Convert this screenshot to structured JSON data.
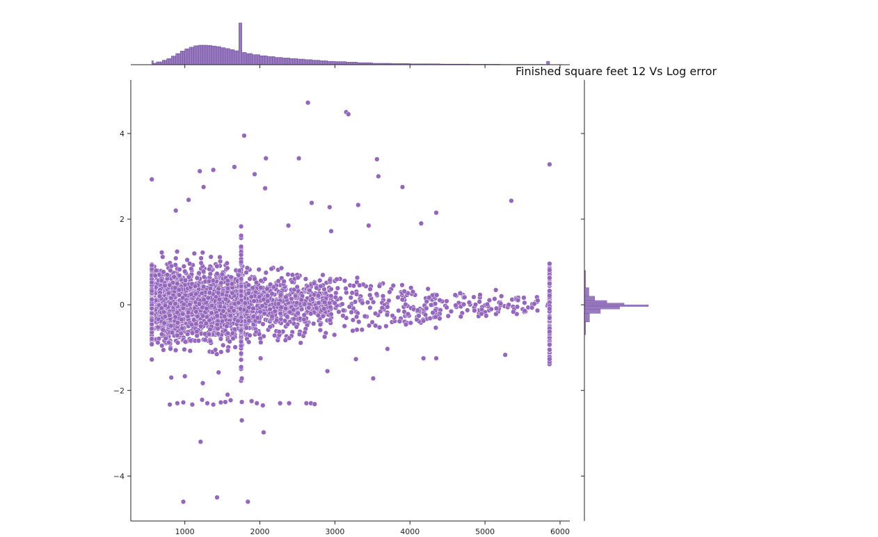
{
  "chart_data": {
    "type": "scatter",
    "title": "Finished square feet 12 Vs Log error",
    "xlabel": "",
    "ylabel": "",
    "xlim": [
      280,
      6130
    ],
    "ylim": [
      -5.05,
      5.25
    ],
    "x_ticks": [
      1000,
      2000,
      3000,
      4000,
      5000,
      6000
    ],
    "x_tick_labels": [
      "1000",
      "2000",
      "3000",
      "4000",
      "5000",
      "6000"
    ],
    "y_ticks": [
      4,
      2,
      0,
      -2,
      -4
    ],
    "y_tick_labels": [
      "4",
      "2",
      "0",
      "−2",
      "−4"
    ],
    "grid": false,
    "marginals": "histograms",
    "colors": {
      "points": "#9467bd",
      "edge": "#ffffff",
      "hist_fill": "#9a7bc2",
      "hist_edge": "#6e4f9c"
    },
    "outliers": [
      [
        2640,
        4.72
      ],
      [
        3150,
        4.5
      ],
      [
        3180,
        4.45
      ],
      [
        1790,
        3.95
      ],
      [
        2080,
        3.42
      ],
      [
        2520,
        3.42
      ],
      [
        3560,
        3.4
      ],
      [
        3580,
        3.0
      ],
      [
        560,
        2.93
      ],
      [
        1660,
        3.22
      ],
      [
        1380,
        3.15
      ],
      [
        1200,
        3.12
      ],
      [
        1930,
        3.05
      ],
      [
        5860,
        3.28
      ],
      [
        3900,
        2.75
      ],
      [
        1250,
        2.75
      ],
      [
        2070,
        2.72
      ],
      [
        5350,
        2.43
      ],
      [
        4350,
        2.15
      ],
      [
        2690,
        2.38
      ],
      [
        3310,
        2.33
      ],
      [
        2930,
        2.28
      ],
      [
        1050,
        2.45
      ],
      [
        880,
        2.2
      ],
      [
        4150,
        1.9
      ],
      [
        2380,
        1.85
      ],
      [
        2950,
        1.72
      ],
      [
        3450,
        1.85
      ],
      [
        560,
        -1.28
      ],
      [
        820,
        -1.7
      ],
      [
        1000,
        -1.67
      ],
      [
        1240,
        -1.83
      ],
      [
        1450,
        -1.58
      ],
      [
        1760,
        -1.72
      ],
      [
        2010,
        -1.25
      ],
      [
        3280,
        -1.27
      ],
      [
        3700,
        -1.03
      ],
      [
        4180,
        -1.25
      ],
      [
        4350,
        -1.25
      ],
      [
        5270,
        -1.17
      ],
      [
        2900,
        -1.55
      ],
      [
        3510,
        -1.72
      ],
      [
        1210,
        -3.2
      ],
      [
        1760,
        -2.7
      ],
      [
        2050,
        -2.98
      ],
      [
        980,
        -4.6
      ],
      [
        1430,
        -4.5
      ],
      [
        1840,
        -4.6
      ],
      [
        800,
        -2.33
      ],
      [
        900,
        -2.3
      ],
      [
        980,
        -2.28
      ],
      [
        1100,
        -2.33
      ],
      [
        1230,
        -2.22
      ],
      [
        1300,
        -2.3
      ],
      [
        1380,
        -2.33
      ],
      [
        1480,
        -2.28
      ],
      [
        1540,
        -2.27
      ],
      [
        1610,
        -2.23
      ],
      [
        1760,
        -2.27
      ],
      [
        1890,
        -2.25
      ],
      [
        1960,
        -2.3
      ],
      [
        2040,
        -2.35
      ],
      [
        2270,
        -2.3
      ],
      [
        2390,
        -2.3
      ],
      [
        2620,
        -2.3
      ],
      [
        2680,
        -2.3
      ],
      [
        2730,
        -2.32
      ],
      [
        1570,
        -2.1
      ]
    ],
    "x_marginal_bins": [
      {
        "x0": 560,
        "x1": 580,
        "v": 0.14
      },
      {
        "x0": 580,
        "x1": 620,
        "v": 0.05
      },
      {
        "x0": 620,
        "x1": 700,
        "v": 0.1
      },
      {
        "x0": 700,
        "x1": 760,
        "v": 0.16
      },
      {
        "x0": 760,
        "x1": 820,
        "v": 0.22
      },
      {
        "x0": 820,
        "x1": 880,
        "v": 0.31
      },
      {
        "x0": 880,
        "x1": 940,
        "v": 0.4
      },
      {
        "x0": 940,
        "x1": 1000,
        "v": 0.49
      },
      {
        "x0": 1000,
        "x1": 1060,
        "v": 0.57
      },
      {
        "x0": 1060,
        "x1": 1120,
        "v": 0.63
      },
      {
        "x0": 1120,
        "x1": 1180,
        "v": 0.68
      },
      {
        "x0": 1180,
        "x1": 1240,
        "v": 0.7
      },
      {
        "x0": 1240,
        "x1": 1300,
        "v": 0.7
      },
      {
        "x0": 1300,
        "x1": 1360,
        "v": 0.69
      },
      {
        "x0": 1360,
        "x1": 1420,
        "v": 0.67
      },
      {
        "x0": 1420,
        "x1": 1480,
        "v": 0.65
      },
      {
        "x0": 1480,
        "x1": 1540,
        "v": 0.61
      },
      {
        "x0": 1540,
        "x1": 1600,
        "v": 0.58
      },
      {
        "x0": 1600,
        "x1": 1660,
        "v": 0.54
      },
      {
        "x0": 1660,
        "x1": 1720,
        "v": 0.5
      },
      {
        "x0": 1720,
        "x1": 1760,
        "v": 1.5
      },
      {
        "x0": 1760,
        "x1": 1820,
        "v": 0.44
      },
      {
        "x0": 1820,
        "x1": 1900,
        "v": 0.4
      },
      {
        "x0": 1900,
        "x1": 2000,
        "v": 0.36
      },
      {
        "x0": 2000,
        "x1": 2100,
        "v": 0.32
      },
      {
        "x0": 2100,
        "x1": 2200,
        "v": 0.29
      },
      {
        "x0": 2200,
        "x1": 2300,
        "v": 0.26
      },
      {
        "x0": 2300,
        "x1": 2400,
        "v": 0.24
      },
      {
        "x0": 2400,
        "x1": 2500,
        "v": 0.22
      },
      {
        "x0": 2500,
        "x1": 2600,
        "v": 0.2
      },
      {
        "x0": 2600,
        "x1": 2700,
        "v": 0.18
      },
      {
        "x0": 2700,
        "x1": 2800,
        "v": 0.16
      },
      {
        "x0": 2800,
        "x1": 2900,
        "v": 0.14
      },
      {
        "x0": 2900,
        "x1": 3000,
        "v": 0.12
      },
      {
        "x0": 3000,
        "x1": 3150,
        "v": 0.11
      },
      {
        "x0": 3150,
        "x1": 3300,
        "v": 0.09
      },
      {
        "x0": 3300,
        "x1": 3500,
        "v": 0.07
      },
      {
        "x0": 3500,
        "x1": 3750,
        "v": 0.05
      },
      {
        "x0": 3750,
        "x1": 4000,
        "v": 0.04
      },
      {
        "x0": 4000,
        "x1": 4400,
        "v": 0.03
      },
      {
        "x0": 4400,
        "x1": 4800,
        "v": 0.02
      },
      {
        "x0": 4800,
        "x1": 5200,
        "v": 0.015
      },
      {
        "x0": 5200,
        "x1": 5800,
        "v": 0.01
      },
      {
        "x0": 5820,
        "x1": 5860,
        "v": 0.12
      }
    ],
    "y_marginal_bins": [
      {
        "y0": -0.7,
        "y1": -0.4,
        "v": 0.02
      },
      {
        "y0": -0.4,
        "y1": -0.2,
        "v": 0.08
      },
      {
        "y0": -0.2,
        "y1": -0.1,
        "v": 0.25
      },
      {
        "y0": -0.1,
        "y1": -0.04,
        "v": 0.55
      },
      {
        "y0": -0.04,
        "y1": 0.0,
        "v": 1.0
      },
      {
        "y0": 0.0,
        "y1": 0.04,
        "v": 0.62
      },
      {
        "y0": 0.04,
        "y1": 0.1,
        "v": 0.35
      },
      {
        "y0": 0.1,
        "y1": 0.2,
        "v": 0.16
      },
      {
        "y0": 0.2,
        "y1": 0.4,
        "v": 0.07
      },
      {
        "y0": 0.4,
        "y1": 0.8,
        "v": 0.02
      }
    ]
  }
}
